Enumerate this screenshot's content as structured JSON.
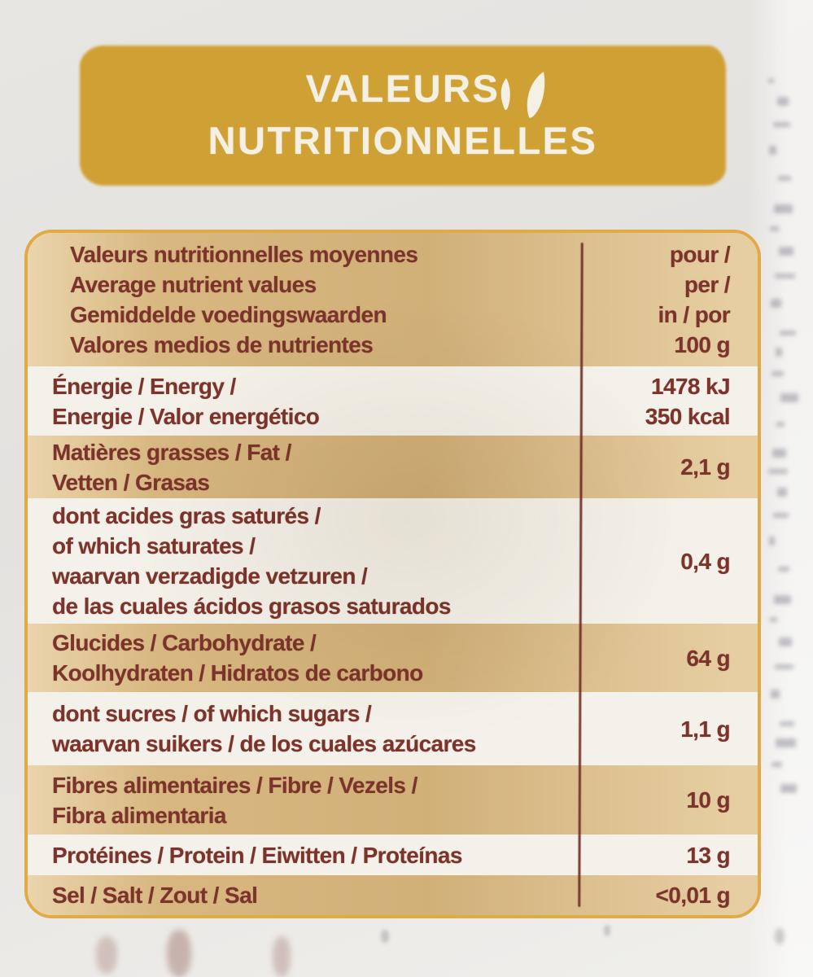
{
  "colors": {
    "banner_bg": "#cfa033",
    "banner_text": "#f4f0e4",
    "card_border": "#e0aa46",
    "row_tan": "#d8b780",
    "row_white": "#f4f1ea",
    "ink": "#7b342b",
    "divider": "#6e2b23"
  },
  "banner": {
    "line1": "VALEURS",
    "line2": "NUTRITIONNELLES",
    "leaf_icon": "leaf-icon"
  },
  "table": {
    "header": {
      "labels": [
        "Valeurs nutritionnelles moyennes",
        "Average nutrient values",
        "Gemiddelde voedingswaarden",
        "Valores medios de nutrientes"
      ],
      "unit_lines": [
        "pour /",
        "per /",
        "in / por",
        "100 g"
      ]
    },
    "rows": [
      {
        "labels": [
          "Énergie / Energy /",
          "Energie / Valor energético"
        ],
        "values": [
          "1478 kJ",
          "350 kcal"
        ]
      },
      {
        "labels": [
          "Matières grasses / Fat /",
          "Vetten / Grasas"
        ],
        "values": [
          "2,1 g"
        ]
      },
      {
        "labels": [
          "dont acides gras saturés /",
          "of which saturates /",
          "waarvan verzadigde vetzuren /",
          "de las cuales ácidos grasos saturados"
        ],
        "values": [
          "0,4 g"
        ]
      },
      {
        "labels": [
          "Glucides / Carbohydrate /",
          "Koolhydraten / Hidratos de carbono"
        ],
        "values": [
          "64 g"
        ]
      },
      {
        "labels": [
          "dont sucres / of which sugars /",
          "waarvan suikers / de los cuales azúcares"
        ],
        "values": [
          "1,1 g"
        ]
      },
      {
        "labels": [
          "Fibres alimentaires / Fibre / Vezels /",
          "Fibra alimentaria"
        ],
        "values": [
          "10 g"
        ]
      },
      {
        "labels": [
          "Protéines / Protein / Eiwitten / Proteínas"
        ],
        "values": [
          "13 g"
        ]
      },
      {
        "labels": [
          "Sel / Salt / Zout / Sal"
        ],
        "values": [
          "<0,01 g"
        ]
      }
    ]
  }
}
